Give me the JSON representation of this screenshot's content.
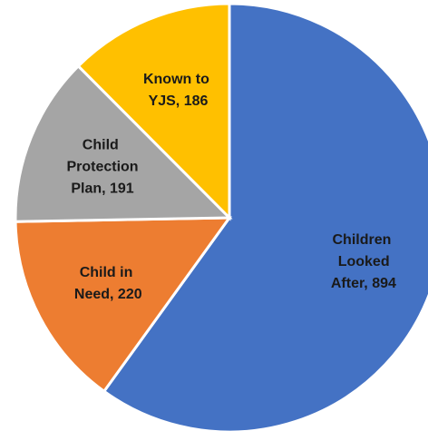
{
  "chart_data": {
    "type": "pie",
    "values": [
      894,
      220,
      191,
      186
    ],
    "value_labels": [
      "Children Looked After, 894",
      "Child in Need, 220",
      "Child Protection Plan, 191",
      "Known to YJS, 186"
    ],
    "colors": [
      "#4472c4",
      "#ed7d31",
      "#a5a5a5",
      "#ffc000"
    ]
  }
}
